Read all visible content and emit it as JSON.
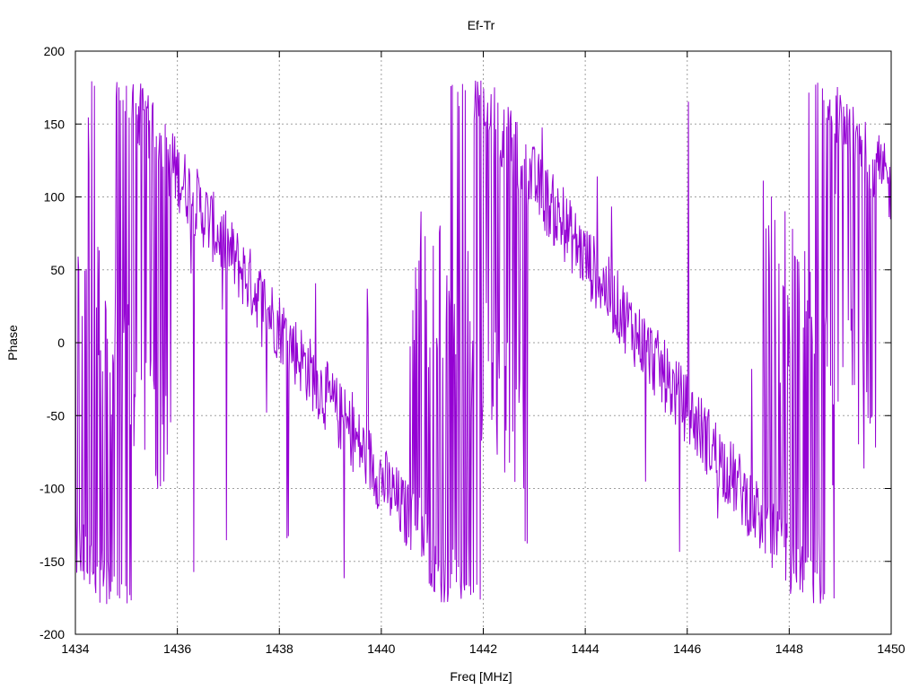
{
  "chart_data": {
    "type": "line",
    "title": "Ef-Tr",
    "xlabel": "Freq [MHz]",
    "ylabel": "Phase",
    "xlim": [
      1434,
      1450
    ],
    "ylim": [
      -200,
      200
    ],
    "x_ticks": [
      1434,
      1436,
      1438,
      1440,
      1442,
      1444,
      1446,
      1448,
      1450
    ],
    "y_ticks": [
      -200,
      -150,
      -100,
      -50,
      0,
      50,
      100,
      150,
      200
    ],
    "grid": true,
    "legend": "none",
    "series": [
      {
        "color": "#9400d3",
        "x_start": 1434,
        "x_end": 1450,
        "points": 1200,
        "phase_period_mhz": 6.9,
        "phase_at_start": -140,
        "phase_noise": 25,
        "wrap_range": [
          -180,
          180
        ]
      }
    ]
  }
}
